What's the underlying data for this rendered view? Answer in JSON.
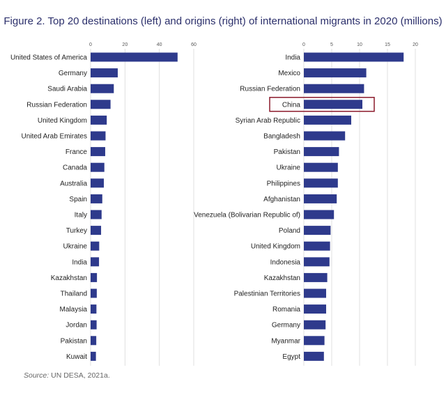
{
  "title": "Figure 2. Top 20 destinations (left) and origins (right) of international migrants in 2020 (millions)",
  "source": {
    "label": "Source:",
    "text": "UN DESA, 2021a."
  },
  "colors": {
    "bar": "#2e3a8c",
    "grid": "#d8d8d8",
    "highlight": "#8b1a2b"
  },
  "chart_data": [
    {
      "type": "bar",
      "orientation": "horizontal",
      "title": "",
      "xlim": [
        0,
        60
      ],
      "xticks": [
        0,
        20,
        40,
        60
      ],
      "grid": true,
      "categories": [
        "United States of America",
        "Germany",
        "Saudi Arabia",
        "Russian Federation",
        "United Kingdom",
        "United Arab Emirates",
        "France",
        "Canada",
        "Australia",
        "Spain",
        "Italy",
        "Turkey",
        "Ukraine",
        "India",
        "Kazakhstan",
        "Thailand",
        "Malaysia",
        "Jordan",
        "Pakistan",
        "Kuwait"
      ],
      "values": [
        50.6,
        15.8,
        13.5,
        11.6,
        9.4,
        8.7,
        8.5,
        8.0,
        7.7,
        6.8,
        6.4,
        6.1,
        5.0,
        4.9,
        3.7,
        3.6,
        3.4,
        3.5,
        3.3,
        3.1
      ]
    },
    {
      "type": "bar",
      "orientation": "horizontal",
      "title": "",
      "xlim": [
        0,
        20
      ],
      "xticks": [
        0,
        5,
        10,
        15,
        20
      ],
      "grid": true,
      "highlight": "China",
      "categories": [
        "India",
        "Mexico",
        "Russian Federation",
        "China",
        "Syrian Arab Republic",
        "Bangladesh",
        "Pakistan",
        "Ukraine",
        "Philippines",
        "Afghanistan",
        "Venezuela (Bolivarian Republic of)",
        "Poland",
        "United Kingdom",
        "Indonesia",
        "Kazakhstan",
        "Palestinian Territories",
        "Romania",
        "Germany",
        "Myanmar",
        "Egypt"
      ],
      "values": [
        17.9,
        11.2,
        10.8,
        10.5,
        8.5,
        7.4,
        6.3,
        6.1,
        6.1,
        5.9,
        5.4,
        4.8,
        4.7,
        4.6,
        4.2,
        4.0,
        4.0,
        3.9,
        3.7,
        3.6
      ]
    }
  ]
}
